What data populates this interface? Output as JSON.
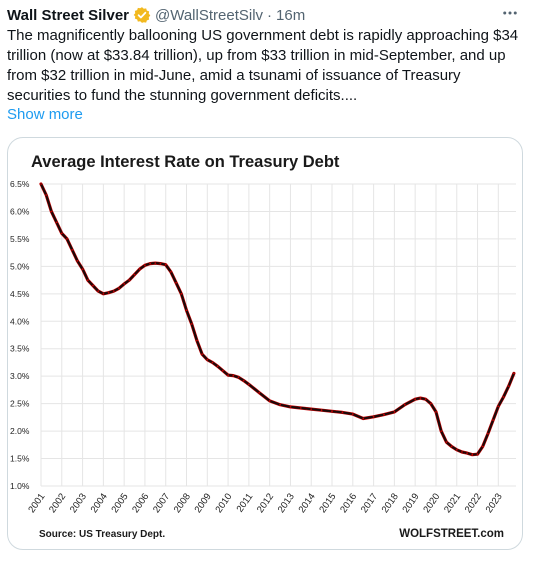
{
  "tweet": {
    "author_name": "Wall Street Silver",
    "handle": "@WallStreetSilv",
    "separator": "·",
    "time": "16m",
    "text": "The magnificently ballooning US government debt is rapidly approaching $34 trillion (now at $33.84 trillion), up from $33 trillion in mid-September, and up  from $32 trillion in mid-June, amid a tsunami of issuance of Treasury securities to fund the stunning government deficits....",
    "show_more": "Show more",
    "more_icon": "more-icon",
    "verified_icon": "verified-badge-icon"
  },
  "chart_data": {
    "type": "line",
    "title": "Average Interest Rate on Treasury Debt",
    "source": "Source: US Treasury Dept.",
    "watermark": "WOLFSTREET.com",
    "y_ticks": [
      "1.0%",
      "1.5%",
      "2.0%",
      "2.5%",
      "3.0%",
      "3.5%",
      "4.0%",
      "4.5%",
      "5.0%",
      "5.5%",
      "6.0%",
      "6.5%"
    ],
    "x_ticks": [
      "2001",
      "2002",
      "2003",
      "2004",
      "2005",
      "2006",
      "2007",
      "2008",
      "2009",
      "2010",
      "2011",
      "2012",
      "2013",
      "2014",
      "2015",
      "2016",
      "2017",
      "2018",
      "2019",
      "2020",
      "2021",
      "2022",
      "2023"
    ],
    "ylim": [
      1.0,
      6.5
    ],
    "xlim": [
      2001,
      2023.85
    ],
    "grid": true,
    "line_color": "#1a0a0a",
    "marker_color": "#cc0000",
    "series": [
      {
        "x": [
          2001.0,
          2001.25,
          2001.5,
          2001.75,
          2002.0,
          2002.25,
          2002.5,
          2002.75,
          2003.0,
          2003.25,
          2003.5,
          2003.75,
          2004.0,
          2004.25,
          2004.5,
          2004.75,
          2005.0,
          2005.25,
          2005.5,
          2005.75,
          2006.0,
          2006.25,
          2006.5,
          2006.75,
          2007.0,
          2007.25,
          2007.5,
          2007.75,
          2008.0,
          2008.25,
          2008.5,
          2008.75,
          2009.0,
          2009.25,
          2009.5,
          2009.75,
          2010.0,
          2010.25,
          2010.5,
          2010.75,
          2011.0,
          2011.5,
          2012.0,
          2012.5,
          2013.0,
          2013.5,
          2014.0,
          2014.5,
          2015.0,
          2015.5,
          2016.0,
          2016.5,
          2017.0,
          2017.5,
          2018.0,
          2018.5,
          2019.0,
          2019.25,
          2019.5,
          2019.75,
          2020.0,
          2020.25,
          2020.5,
          2020.75,
          2021.0,
          2021.25,
          2021.5,
          2021.75,
          2022.0,
          2022.25,
          2022.5,
          2022.75,
          2023.0,
          2023.25,
          2023.5,
          2023.75
        ],
        "y": [
          6.5,
          6.3,
          6.0,
          5.8,
          5.6,
          5.5,
          5.3,
          5.1,
          4.95,
          4.75,
          4.65,
          4.55,
          4.5,
          4.52,
          4.55,
          4.6,
          4.68,
          4.75,
          4.85,
          4.95,
          5.02,
          5.05,
          5.06,
          5.05,
          5.03,
          4.9,
          4.7,
          4.5,
          4.2,
          3.95,
          3.65,
          3.4,
          3.3,
          3.25,
          3.18,
          3.1,
          3.02,
          3.01,
          2.98,
          2.92,
          2.85,
          2.7,
          2.55,
          2.48,
          2.44,
          2.42,
          2.4,
          2.38,
          2.36,
          2.34,
          2.31,
          2.23,
          2.26,
          2.3,
          2.35,
          2.48,
          2.58,
          2.6,
          2.58,
          2.5,
          2.35,
          2.0,
          1.8,
          1.72,
          1.66,
          1.62,
          1.6,
          1.57,
          1.58,
          1.72,
          1.95,
          2.2,
          2.45,
          2.62,
          2.82,
          3.05
        ]
      }
    ]
  }
}
